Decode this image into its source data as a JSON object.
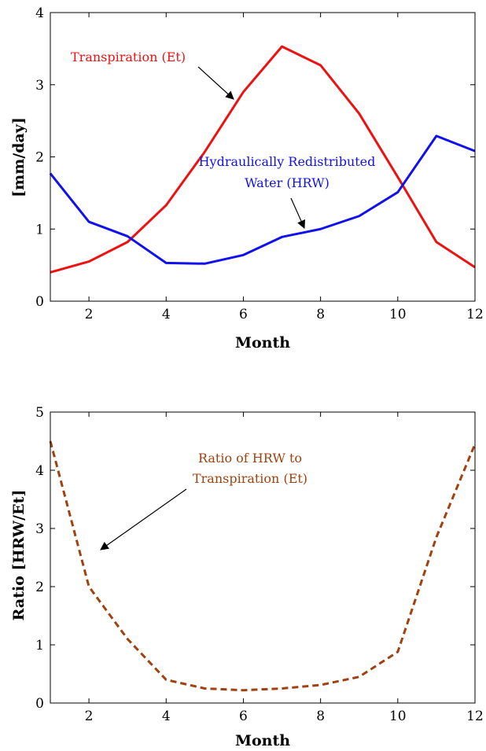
{
  "chart_data": [
    {
      "type": "line",
      "xlabel": "Month",
      "ylabel": "[mm/day]",
      "xlim": [
        1,
        12
      ],
      "ylim": [
        0,
        4
      ],
      "xticks": [
        "2",
        "4",
        "6",
        "8",
        "10",
        "12"
      ],
      "yticks": [
        "0",
        "1",
        "2",
        "3",
        "4"
      ],
      "grid": false,
      "x": [
        1,
        2,
        3,
        4,
        5,
        6,
        7,
        8,
        9,
        10,
        11,
        12
      ],
      "series": [
        {
          "color": "#ee1111",
          "style": "solid",
          "values": [
            0.4,
            0.55,
            0.82,
            1.33,
            2.07,
            2.9,
            3.53,
            3.27,
            2.6,
            1.72,
            0.82,
            0.47
          ]
        },
        {
          "color": "#1111ee",
          "style": "solid",
          "values": [
            1.77,
            1.1,
            0.9,
            0.53,
            0.52,
            0.64,
            0.89,
            1.0,
            1.18,
            1.51,
            2.29,
            2.08
          ]
        }
      ],
      "annotations": [
        {
          "text": "Transpiration (Et)",
          "color": "#ee1111"
        },
        {
          "text": "Hydraulically Redistributed",
          "color": "#1111ee"
        },
        {
          "text": "Water (HRW)",
          "color": "#1111ee"
        }
      ]
    },
    {
      "type": "line",
      "xlabel": "Month",
      "ylabel": "Ratio [HRW/Et]",
      "xlim": [
        1,
        12
      ],
      "ylim": [
        0,
        5
      ],
      "xticks": [
        "2",
        "4",
        "6",
        "8",
        "10",
        "12"
      ],
      "yticks": [
        "0",
        "1",
        "2",
        "3",
        "4",
        "5"
      ],
      "grid": false,
      "x": [
        1,
        2,
        3,
        4,
        5,
        6,
        7,
        8,
        9,
        10,
        11,
        12
      ],
      "series": [
        {
          "color": "#a0420f",
          "style": "dashed",
          "values": [
            4.5,
            2.0,
            1.1,
            0.4,
            0.25,
            0.22,
            0.25,
            0.31,
            0.45,
            0.88,
            2.85,
            4.45
          ]
        }
      ],
      "annotations": [
        {
          "text": "Ratio of HRW to",
          "color": "#a0420f"
        },
        {
          "text": "Transpiration (Et)",
          "color": "#a0420f"
        }
      ]
    }
  ]
}
